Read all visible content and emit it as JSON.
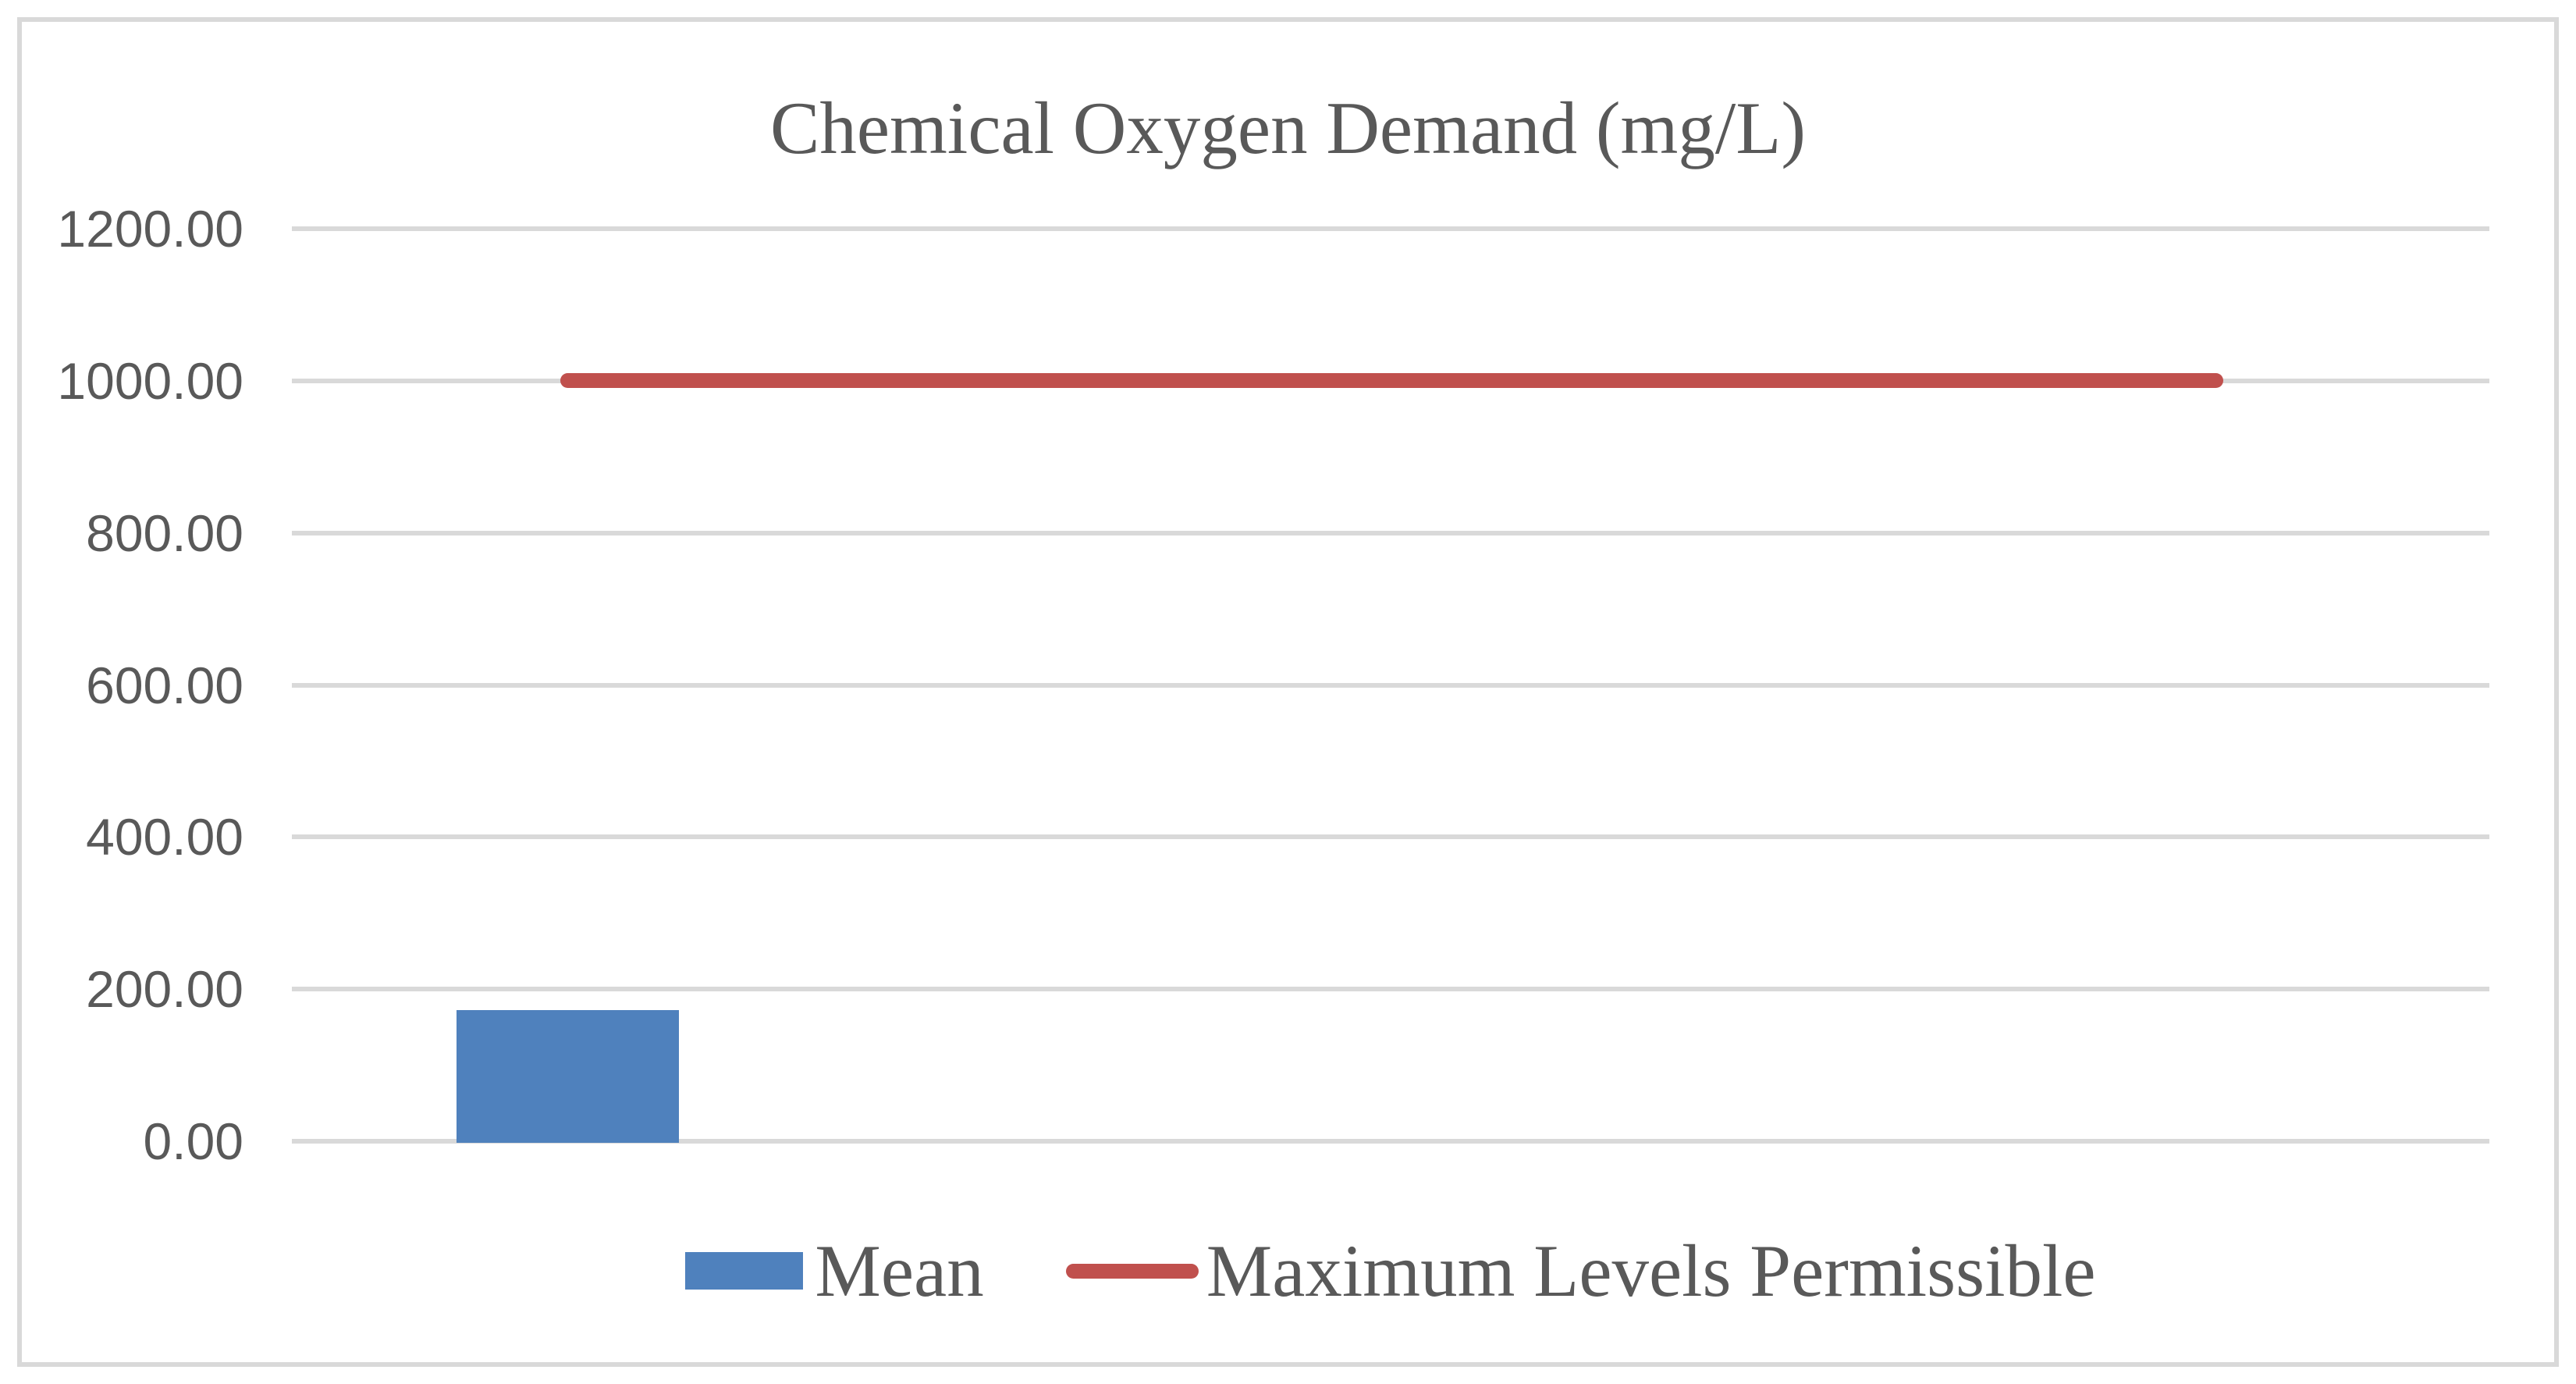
{
  "title": "Chemical Oxygen Demand (mg/L)",
  "chart_data": {
    "type": "bar",
    "title": "Chemical Oxygen Demand (mg/L)",
    "categories": [
      ""
    ],
    "series": [
      {
        "name": "Mean",
        "type": "bar",
        "values": [
          175
        ],
        "color": "#4F81BD"
      },
      {
        "name": "Maximum Levels Permissible",
        "type": "line",
        "values": [
          1000
        ],
        "color": "#C0504D"
      }
    ],
    "xlabel": "",
    "ylabel": "",
    "ylim": [
      0,
      1200
    ],
    "y_ticks": [
      "1200.00",
      "1000.00",
      "800.00",
      "600.00",
      "400.00",
      "200.00",
      "0.00"
    ],
    "grid": true,
    "legend_position": "bottom",
    "text_color": "#595959",
    "gridline_color": "#D9D9D9",
    "background_color": "#FFFFFF",
    "frame_color": "#D9D9D9"
  },
  "legend": {
    "items": [
      {
        "label": "Mean",
        "swatch": "bar",
        "color": "#4F81BD"
      },
      {
        "label": "Maximum Levels Permissible",
        "swatch": "line",
        "color": "#C0504D"
      }
    ]
  }
}
